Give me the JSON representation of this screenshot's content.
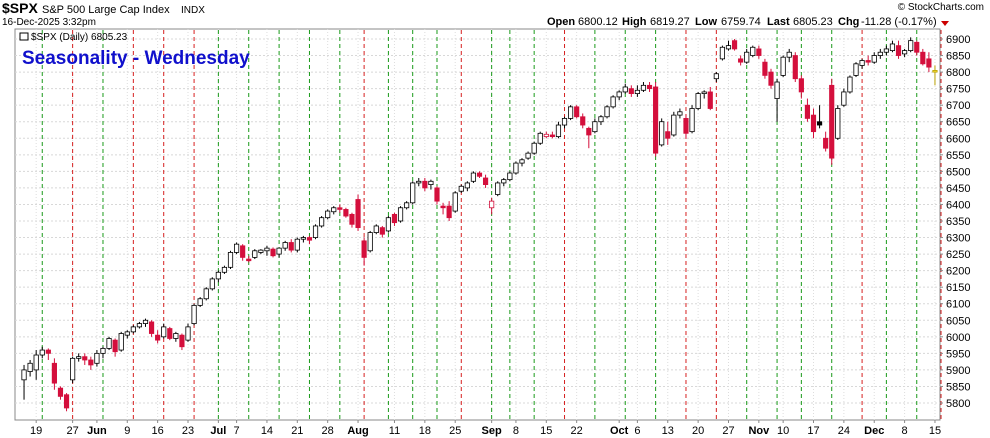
{
  "header": {
    "symbol": "$SPX",
    "name": "S&P 500 Large Cap Index",
    "exchange": "INDX",
    "date": "16-Dec-2025 3:32pm",
    "open_label": "Open",
    "open": "6800.12",
    "high_label": "High",
    "high": "6819.27",
    "low_label": "Low",
    "low": "6759.74",
    "last_label": "Last",
    "last": "6805.23",
    "chg_label": "Chg",
    "chg": "-11.28 (-0.17%)",
    "watermark": "© StockCharts.com"
  },
  "chart_data": {
    "type": "candlestick",
    "title": "Seasonality - Wednesday",
    "legend": "$SPX (Daily) 6805.23",
    "ylim": [
      5750,
      6950
    ],
    "y_ticks": [
      5800,
      5850,
      5900,
      5950,
      6000,
      6050,
      6100,
      6150,
      6200,
      6250,
      6300,
      6350,
      6400,
      6450,
      6500,
      6550,
      6600,
      6650,
      6700,
      6750,
      6800,
      6850,
      6900
    ],
    "x_ticks": [
      {
        "i": 2,
        "label": "19",
        "bold": false
      },
      {
        "i": 8,
        "label": "27",
        "bold": false
      },
      {
        "i": 12,
        "label": "Jun",
        "bold": true
      },
      {
        "i": 17,
        "label": "9",
        "bold": false
      },
      {
        "i": 22,
        "label": "16",
        "bold": false
      },
      {
        "i": 27,
        "label": "23",
        "bold": false
      },
      {
        "i": 32,
        "label": "Jul",
        "bold": true
      },
      {
        "i": 35,
        "label": "7",
        "bold": false
      },
      {
        "i": 40,
        "label": "14",
        "bold": false
      },
      {
        "i": 45,
        "label": "21",
        "bold": false
      },
      {
        "i": 50,
        "label": "28",
        "bold": false
      },
      {
        "i": 55,
        "label": "Aug",
        "bold": true
      },
      {
        "i": 61,
        "label": "11",
        "bold": false
      },
      {
        "i": 66,
        "label": "18",
        "bold": false
      },
      {
        "i": 71,
        "label": "25",
        "bold": false
      },
      {
        "i": 77,
        "label": "Sep",
        "bold": true
      },
      {
        "i": 81,
        "label": "8",
        "bold": false
      },
      {
        "i": 86,
        "label": "15",
        "bold": false
      },
      {
        "i": 91,
        "label": "22",
        "bold": false
      },
      {
        "i": 98,
        "label": "Oct",
        "bold": true
      },
      {
        "i": 101,
        "label": "6",
        "bold": false
      },
      {
        "i": 106,
        "label": "13",
        "bold": false
      },
      {
        "i": 111,
        "label": "20",
        "bold": false
      },
      {
        "i": 116,
        "label": "27",
        "bold": false
      },
      {
        "i": 121,
        "label": "Nov",
        "bold": true
      },
      {
        "i": 125,
        "label": "10",
        "bold": false
      },
      {
        "i": 130,
        "label": "17",
        "bold": false
      },
      {
        "i": 135,
        "label": "24",
        "bold": false
      },
      {
        "i": 140,
        "label": "Dec",
        "bold": true
      },
      {
        "i": 145,
        "label": "8",
        "bold": false
      },
      {
        "i": 150,
        "label": "15",
        "bold": false
      }
    ],
    "wednesday_markers": [
      {
        "i": 3,
        "dir": "up"
      },
      {
        "i": 8,
        "dir": "down"
      },
      {
        "i": 13,
        "dir": "up"
      },
      {
        "i": 18,
        "dir": "down"
      },
      {
        "i": 23,
        "dir": "down"
      },
      {
        "i": 28,
        "dir": "down"
      },
      {
        "i": 32,
        "dir": "up"
      },
      {
        "i": 37,
        "dir": "up"
      },
      {
        "i": 42,
        "dir": "up"
      },
      {
        "i": 47,
        "dir": "up"
      },
      {
        "i": 52,
        "dir": "up"
      },
      {
        "i": 56,
        "dir": "down"
      },
      {
        "i": 60,
        "dir": "up"
      },
      {
        "i": 64,
        "dir": "up"
      },
      {
        "i": 68,
        "dir": "up"
      },
      {
        "i": 72,
        "dir": "down"
      },
      {
        "i": 77,
        "dir": "up"
      },
      {
        "i": 80,
        "dir": "up"
      },
      {
        "i": 84,
        "dir": "up"
      },
      {
        "i": 89,
        "dir": "down"
      },
      {
        "i": 94,
        "dir": "up"
      },
      {
        "i": 99,
        "dir": "up"
      },
      {
        "i": 104,
        "dir": "up"
      },
      {
        "i": 109,
        "dir": "down"
      },
      {
        "i": 114,
        "dir": "down"
      },
      {
        "i": 119,
        "dir": "up"
      },
      {
        "i": 124,
        "dir": "up"
      },
      {
        "i": 128,
        "dir": "up"
      },
      {
        "i": 133,
        "dir": "up"
      },
      {
        "i": 138,
        "dir": "down"
      },
      {
        "i": 142,
        "dir": "up"
      },
      {
        "i": 147,
        "dir": "up"
      },
      {
        "i": 151,
        "dir": "down"
      }
    ],
    "candles": [
      {
        "o": 5870,
        "h": 5915,
        "l": 5810,
        "c": 5900
      },
      {
        "o": 5895,
        "h": 5930,
        "l": 5880,
        "c": 5920
      },
      {
        "o": 5900,
        "h": 5960,
        "l": 5870,
        "c": 5945
      },
      {
        "o": 5945,
        "h": 5970,
        "l": 5935,
        "c": 5960
      },
      {
        "o": 5960,
        "h": 5965,
        "l": 5930,
        "c": 5950
      },
      {
        "o": 5920,
        "h": 5935,
        "l": 5840,
        "c": 5860
      },
      {
        "o": 5845,
        "h": 5850,
        "l": 5810,
        "c": 5820
      },
      {
        "o": 5825,
        "h": 5830,
        "l": 5775,
        "c": 5785
      },
      {
        "o": 5870,
        "h": 5940,
        "l": 5860,
        "c": 5935
      },
      {
        "o": 5935,
        "h": 5950,
        "l": 5925,
        "c": 5940
      },
      {
        "o": 5940,
        "h": 5950,
        "l": 5915,
        "c": 5930
      },
      {
        "o": 5930,
        "h": 5940,
        "l": 5900,
        "c": 5915
      },
      {
        "o": 5920,
        "h": 5960,
        "l": 5910,
        "c": 5950
      },
      {
        "o": 5950,
        "h": 5970,
        "l": 5935,
        "c": 5965
      },
      {
        "o": 5965,
        "h": 6000,
        "l": 5960,
        "c": 5995
      },
      {
        "o": 5990,
        "h": 5995,
        "l": 5940,
        "c": 5955
      },
      {
        "o": 5960,
        "h": 6015,
        "l": 5955,
        "c": 6010
      },
      {
        "o": 6005,
        "h": 6020,
        "l": 5995,
        "c": 6015
      },
      {
        "o": 6015,
        "h": 6035,
        "l": 6010,
        "c": 6030
      },
      {
        "o": 6030,
        "h": 6045,
        "l": 6025,
        "c": 6040
      },
      {
        "o": 6040,
        "h": 6055,
        "l": 6030,
        "c": 6050
      },
      {
        "o": 6045,
        "h": 6050,
        "l": 6000,
        "c": 6010
      },
      {
        "o": 6005,
        "h": 6020,
        "l": 5980,
        "c": 5990
      },
      {
        "o": 6000,
        "h": 6040,
        "l": 5995,
        "c": 6030
      },
      {
        "o": 6025,
        "h": 6030,
        "l": 5990,
        "c": 5995
      },
      {
        "o": 5995,
        "h": 6015,
        "l": 5985,
        "c": 6010
      },
      {
        "o": 6005,
        "h": 6010,
        "l": 5960,
        "c": 5970
      },
      {
        "o": 5990,
        "h": 6040,
        "l": 5985,
        "c": 6030
      },
      {
        "o": 6040,
        "h": 6100,
        "l": 6035,
        "c": 6095
      },
      {
        "o": 6095,
        "h": 6120,
        "l": 6090,
        "c": 6115
      },
      {
        "o": 6115,
        "h": 6150,
        "l": 6110,
        "c": 6145
      },
      {
        "o": 6145,
        "h": 6180,
        "l": 6140,
        "c": 6175
      },
      {
        "o": 6175,
        "h": 6200,
        "l": 6165,
        "c": 6195
      },
      {
        "o": 6195,
        "h": 6215,
        "l": 6190,
        "c": 6210
      },
      {
        "o": 6210,
        "h": 6260,
        "l": 6205,
        "c": 6255
      },
      {
        "o": 6255,
        "h": 6285,
        "l": 6250,
        "c": 6280
      },
      {
        "o": 6275,
        "h": 6280,
        "l": 6230,
        "c": 6240
      },
      {
        "o": 6235,
        "h": 6245,
        "l": 6225,
        "c": 6230
      },
      {
        "o": 6240,
        "h": 6265,
        "l": 6235,
        "c": 6260
      },
      {
        "o": 6255,
        "h": 6265,
        "l": 6250,
        "c": 6262
      },
      {
        "o": 6260,
        "h": 6275,
        "l": 6245,
        "c": 6268
      },
      {
        "o": 6265,
        "h": 6270,
        "l": 6240,
        "c": 6245
      },
      {
        "o": 6250,
        "h": 6270,
        "l": 6240,
        "c": 6268
      },
      {
        "o": 6268,
        "h": 6290,
        "l": 6260,
        "c": 6285
      },
      {
        "o": 6285,
        "h": 6295,
        "l": 6255,
        "c": 6262
      },
      {
        "o": 6262,
        "h": 6300,
        "l": 6255,
        "c": 6295
      },
      {
        "o": 6295,
        "h": 6305,
        "l": 6285,
        "c": 6300
      },
      {
        "o": 6300,
        "h": 6305,
        "l": 6280,
        "c": 6292
      },
      {
        "o": 6300,
        "h": 6340,
        "l": 6295,
        "c": 6335
      },
      {
        "o": 6335,
        "h": 6365,
        "l": 6330,
        "c": 6360
      },
      {
        "o": 6360,
        "h": 6385,
        "l": 6355,
        "c": 6380
      },
      {
        "o": 6378,
        "h": 6395,
        "l": 6370,
        "c": 6390
      },
      {
        "o": 6390,
        "h": 6400,
        "l": 6375,
        "c": 6385
      },
      {
        "o": 6385,
        "h": 6390,
        "l": 6360,
        "c": 6365
      },
      {
        "o": 6370,
        "h": 6375,
        "l": 6330,
        "c": 6340
      },
      {
        "o": 6415,
        "h": 6430,
        "l": 6320,
        "c": 6330
      },
      {
        "o": 6290,
        "h": 6300,
        "l": 6215,
        "c": 6240
      },
      {
        "o": 6260,
        "h": 6320,
        "l": 6255,
        "c": 6315
      },
      {
        "o": 6315,
        "h": 6340,
        "l": 6310,
        "c": 6335
      },
      {
        "o": 6330,
        "h": 6335,
        "l": 6300,
        "c": 6310
      },
      {
        "o": 6320,
        "h": 6365,
        "l": 6315,
        "c": 6360
      },
      {
        "o": 6370,
        "h": 6375,
        "l": 6335,
        "c": 6345
      },
      {
        "o": 6350,
        "h": 6395,
        "l": 6345,
        "c": 6390
      },
      {
        "o": 6390,
        "h": 6410,
        "l": 6385,
        "c": 6405
      },
      {
        "o": 6405,
        "h": 6470,
        "l": 6400,
        "c": 6465
      },
      {
        "o": 6465,
        "h": 6480,
        "l": 6455,
        "c": 6470
      },
      {
        "o": 6470,
        "h": 6480,
        "l": 6440,
        "c": 6450
      },
      {
        "o": 6460,
        "h": 6475,
        "l": 6445,
        "c": 6470
      },
      {
        "o": 6450,
        "h": 6455,
        "l": 6400,
        "c": 6410
      },
      {
        "o": 6395,
        "h": 6405,
        "l": 6370,
        "c": 6390
      },
      {
        "o": 6395,
        "h": 6410,
        "l": 6350,
        "c": 6360
      },
      {
        "o": 6380,
        "h": 6440,
        "l": 6375,
        "c": 6435
      },
      {
        "o": 6440,
        "h": 6460,
        "l": 6435,
        "c": 6455
      },
      {
        "o": 6450,
        "h": 6470,
        "l": 6440,
        "c": 6465
      },
      {
        "o": 6470,
        "h": 6500,
        "l": 6465,
        "c": 6495
      },
      {
        "o": 6495,
        "h": 6500,
        "l": 6480,
        "c": 6485
      },
      {
        "o": 6480,
        "h": 6490,
        "l": 6450,
        "c": 6460
      },
      {
        "o": 6390,
        "h": 6420,
        "l": 6370,
        "c": 6410
      },
      {
        "o": 6430,
        "h": 6470,
        "l": 6425,
        "c": 6465
      },
      {
        "o": 6465,
        "h": 6480,
        "l": 6455,
        "c": 6475
      },
      {
        "o": 6475,
        "h": 6500,
        "l": 6470,
        "c": 6495
      },
      {
        "o": 6495,
        "h": 6530,
        "l": 6490,
        "c": 6525
      },
      {
        "o": 6525,
        "h": 6540,
        "l": 6515,
        "c": 6535
      },
      {
        "o": 6540,
        "h": 6560,
        "l": 6535,
        "c": 6555
      },
      {
        "o": 6555,
        "h": 6590,
        "l": 6550,
        "c": 6585
      },
      {
        "o": 6585,
        "h": 6620,
        "l": 6580,
        "c": 6615
      },
      {
        "o": 6605,
        "h": 6620,
        "l": 6600,
        "c": 6612
      },
      {
        "o": 6610,
        "h": 6620,
        "l": 6600,
        "c": 6605
      },
      {
        "o": 6605,
        "h": 6650,
        "l": 6600,
        "c": 6640
      },
      {
        "o": 6640,
        "h": 6665,
        "l": 6630,
        "c": 6660
      },
      {
        "o": 6660,
        "h": 6700,
        "l": 6655,
        "c": 6695
      },
      {
        "o": 6695,
        "h": 6700,
        "l": 6660,
        "c": 6665
      },
      {
        "o": 6665,
        "h": 6675,
        "l": 6630,
        "c": 6640
      },
      {
        "o": 6630,
        "h": 6635,
        "l": 6570,
        "c": 6610
      },
      {
        "o": 6620,
        "h": 6660,
        "l": 6615,
        "c": 6650
      },
      {
        "o": 6650,
        "h": 6670,
        "l": 6640,
        "c": 6665
      },
      {
        "o": 6665,
        "h": 6700,
        "l": 6660,
        "c": 6695
      },
      {
        "o": 6695,
        "h": 6730,
        "l": 6690,
        "c": 6725
      },
      {
        "o": 6725,
        "h": 6745,
        "l": 6715,
        "c": 6740
      },
      {
        "o": 6740,
        "h": 6765,
        "l": 6735,
        "c": 6755
      },
      {
        "o": 6750,
        "h": 6760,
        "l": 6725,
        "c": 6735
      },
      {
        "o": 6735,
        "h": 6760,
        "l": 6725,
        "c": 6745
      },
      {
        "o": 6745,
        "h": 6770,
        "l": 6740,
        "c": 6760
      },
      {
        "o": 6760,
        "h": 6770,
        "l": 6740,
        "c": 6750
      },
      {
        "o": 6755,
        "h": 6770,
        "l": 6545,
        "c": 6555
      },
      {
        "o": 6580,
        "h": 6660,
        "l": 6575,
        "c": 6650
      },
      {
        "o": 6620,
        "h": 6650,
        "l": 6580,
        "c": 6600
      },
      {
        "o": 6610,
        "h": 6680,
        "l": 6605,
        "c": 6670
      },
      {
        "o": 6670,
        "h": 6690,
        "l": 6660,
        "c": 6680
      },
      {
        "o": 6660,
        "h": 6670,
        "l": 6600,
        "c": 6615
      },
      {
        "o": 6620,
        "h": 6700,
        "l": 6615,
        "c": 6690
      },
      {
        "o": 6690,
        "h": 6740,
        "l": 6685,
        "c": 6735
      },
      {
        "o": 6735,
        "h": 6745,
        "l": 6720,
        "c": 6740
      },
      {
        "o": 6740,
        "h": 6755,
        "l": 6685,
        "c": 6690
      },
      {
        "o": 6780,
        "h": 6800,
        "l": 6770,
        "c": 6795
      },
      {
        "o": 6840,
        "h": 6880,
        "l": 6835,
        "c": 6875
      },
      {
        "o": 6870,
        "h": 6895,
        "l": 6865,
        "c": 6880
      },
      {
        "o": 6895,
        "h": 6900,
        "l": 6865,
        "c": 6870
      },
      {
        "o": 6840,
        "h": 6850,
        "l": 6820,
        "c": 6830
      },
      {
        "o": 6830,
        "h": 6870,
        "l": 6825,
        "c": 6860
      },
      {
        "o": 6850,
        "h": 6880,
        "l": 6845,
        "c": 6875
      },
      {
        "o": 6870,
        "h": 6880,
        "l": 6840,
        "c": 6850
      },
      {
        "o": 6830,
        "h": 6840,
        "l": 6780,
        "c": 6790
      },
      {
        "o": 6800,
        "h": 6810,
        "l": 6750,
        "c": 6760
      },
      {
        "o": 6720,
        "h": 6780,
        "l": 6650,
        "c": 6770
      },
      {
        "o": 6790,
        "h": 6850,
        "l": 6785,
        "c": 6845
      },
      {
        "o": 6845,
        "h": 6870,
        "l": 6830,
        "c": 6860
      },
      {
        "o": 6850,
        "h": 6860,
        "l": 6770,
        "c": 6780
      },
      {
        "o": 6780,
        "h": 6790,
        "l": 6720,
        "c": 6740
      },
      {
        "o": 6700,
        "h": 6720,
        "l": 6650,
        "c": 6660
      },
      {
        "o": 6670,
        "h": 6690,
        "l": 6600,
        "c": 6620
      },
      {
        "o": 6650,
        "h": 6700,
        "l": 6630,
        "c": 6640
      },
      {
        "o": 6600,
        "h": 6620,
        "l": 6560,
        "c": 6570
      },
      {
        "o": 6760,
        "h": 6780,
        "l": 6520,
        "c": 6540
      },
      {
        "o": 6600,
        "h": 6700,
        "l": 6595,
        "c": 6690
      },
      {
        "o": 6700,
        "h": 6750,
        "l": 6695,
        "c": 6740
      },
      {
        "o": 6740,
        "h": 6790,
        "l": 6735,
        "c": 6785
      },
      {
        "o": 6790,
        "h": 6830,
        "l": 6785,
        "c": 6825
      },
      {
        "o": 6820,
        "h": 6840,
        "l": 6810,
        "c": 6835
      },
      {
        "o": 6835,
        "h": 6850,
        "l": 6820,
        "c": 6830
      },
      {
        "o": 6830,
        "h": 6860,
        "l": 6825,
        "c": 6850
      },
      {
        "o": 6850,
        "h": 6870,
        "l": 6840,
        "c": 6860
      },
      {
        "o": 6860,
        "h": 6880,
        "l": 6850,
        "c": 6870
      },
      {
        "o": 6865,
        "h": 6895,
        "l": 6860,
        "c": 6885
      },
      {
        "o": 6880,
        "h": 6895,
        "l": 6840,
        "c": 6850
      },
      {
        "o": 6855,
        "h": 6870,
        "l": 6845,
        "c": 6865
      },
      {
        "o": 6865,
        "h": 6905,
        "l": 6860,
        "c": 6895
      },
      {
        "o": 6890,
        "h": 6895,
        "l": 6850,
        "c": 6860
      },
      {
        "o": 6860,
        "h": 6870,
        "l": 6820,
        "c": 6825
      },
      {
        "o": 6840,
        "h": 6860,
        "l": 6800,
        "c": 6815
      },
      {
        "o": 6800,
        "h": 6820,
        "l": 6760,
        "c": 6805
      }
    ]
  },
  "colors": {
    "up_body": "#ffffff",
    "down_body": "#d40f3c",
    "gap_up_body": "#000000",
    "gap_down_body": "#ffffff",
    "gap_down_edge": "#d40f3c",
    "last_body": "#ffe135",
    "wednesday_up_line": "#1a9a1a",
    "wednesday_down_line": "#d62020",
    "title": "#1010cc",
    "chg_arrow": "#cc0000"
  }
}
